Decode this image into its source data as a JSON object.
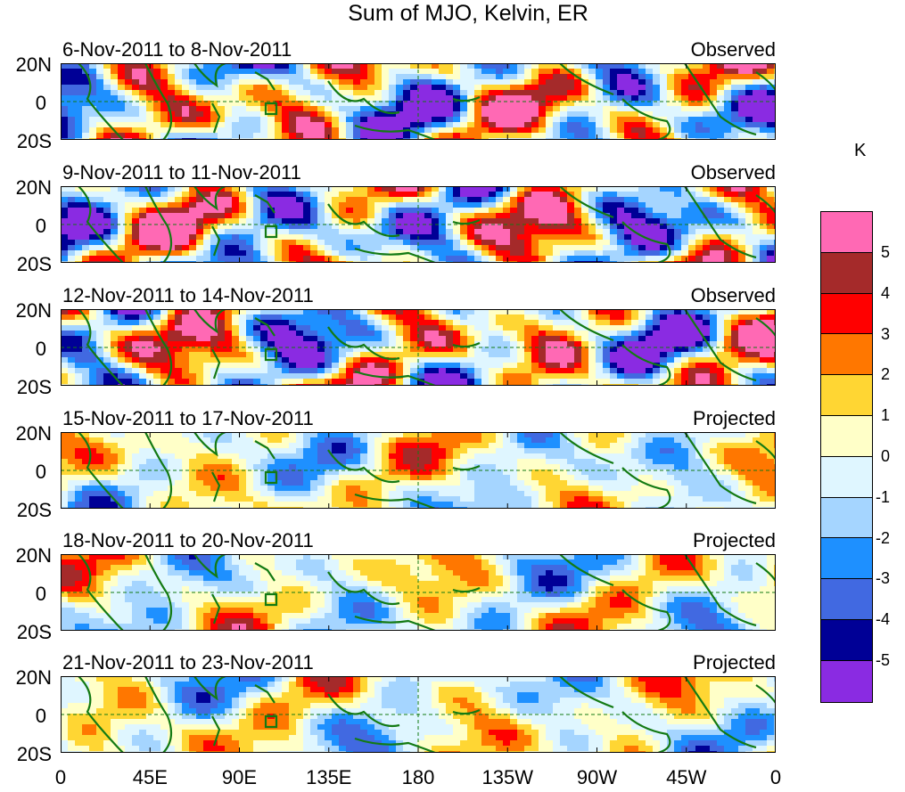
{
  "title": "Sum of MJO, Kelvin, ER",
  "lat_labels": [
    "20N",
    "0",
    "20S"
  ],
  "lon_labels": [
    "0",
    "45E",
    "90E",
    "135E",
    "180",
    "135W",
    "90W",
    "45W",
    "0"
  ],
  "colorbar": {
    "unit": "K",
    "tick_labels": [
      "5",
      "4",
      "3",
      "2",
      "1",
      "0",
      "-1",
      "-2",
      "-3",
      "-4",
      "-5"
    ],
    "colors": [
      "#ff69b4",
      "#a52a2a",
      "#ff0000",
      "#ff7700",
      "#ffd633",
      "#ffffc8",
      "#dff6ff",
      "#a5d5ff",
      "#1e90ff",
      "#4169e1",
      "#000096",
      "#8a2be2"
    ]
  },
  "panels": [
    {
      "date_range": "6-Nov-2011 to 8-Nov-2011",
      "status": "Observed"
    },
    {
      "date_range": "9-Nov-2011 to 11-Nov-2011",
      "status": "Observed"
    },
    {
      "date_range": "12-Nov-2011 to 14-Nov-2011",
      "status": "Observed"
    },
    {
      "date_range": "15-Nov-2011 to 17-Nov-2011",
      "status": "Projected"
    },
    {
      "date_range": "18-Nov-2011 to 20-Nov-2011",
      "status": "Projected"
    },
    {
      "date_range": "21-Nov-2011 to 23-Nov-2011",
      "status": "Projected"
    }
  ]
}
